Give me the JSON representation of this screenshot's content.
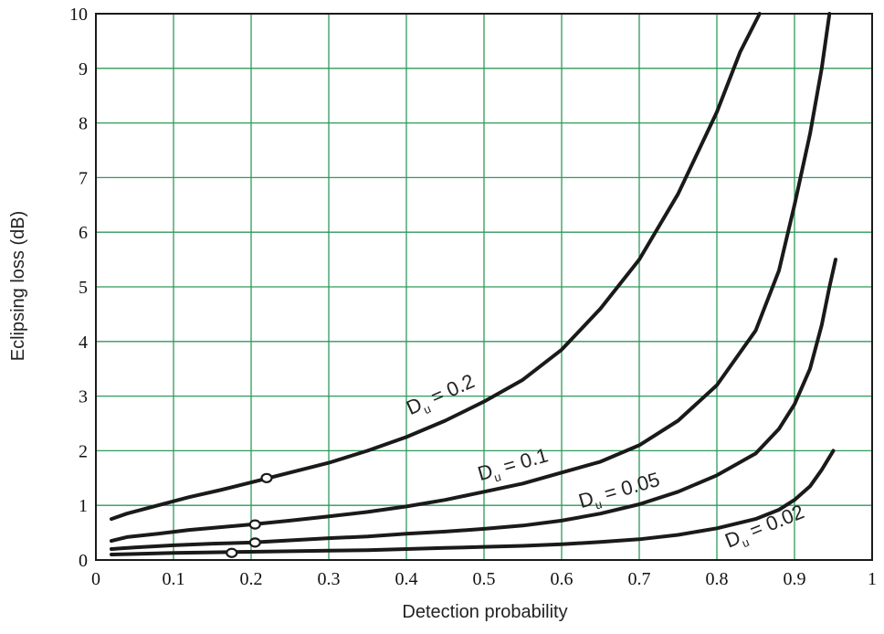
{
  "chart_data": {
    "type": "line",
    "xlabel": "Detection probability",
    "ylabel": "Eclipsing loss (dB)",
    "xlim": [
      0,
      1
    ],
    "ylim": [
      0,
      10
    ],
    "xticks": [
      "0",
      "0.1",
      "0.2",
      "0.3",
      "0.4",
      "0.5",
      "0.6",
      "0.7",
      "0.8",
      "0.9",
      "1"
    ],
    "yticks": [
      "0",
      "1",
      "2",
      "3",
      "4",
      "5",
      "6",
      "7",
      "8",
      "9",
      "10"
    ],
    "grid": true,
    "grid_color": "#2e9a5a",
    "line_color": "#1a1a1a",
    "series": [
      {
        "name": "D_u = 0.2",
        "label_main": "D",
        "label_sub": "u",
        "label_rest": " = 0.2",
        "marker": [
          0.22,
          1.5
        ],
        "points": [
          [
            0.02,
            0.75
          ],
          [
            0.04,
            0.85
          ],
          [
            0.08,
            1.0
          ],
          [
            0.12,
            1.15
          ],
          [
            0.16,
            1.28
          ],
          [
            0.2,
            1.42
          ],
          [
            0.25,
            1.6
          ],
          [
            0.3,
            1.78
          ],
          [
            0.35,
            2.0
          ],
          [
            0.4,
            2.25
          ],
          [
            0.45,
            2.55
          ],
          [
            0.5,
            2.9
          ],
          [
            0.55,
            3.3
          ],
          [
            0.6,
            3.85
          ],
          [
            0.65,
            4.6
          ],
          [
            0.7,
            5.5
          ],
          [
            0.75,
            6.7
          ],
          [
            0.8,
            8.2
          ],
          [
            0.83,
            9.3
          ],
          [
            0.855,
            10.0
          ]
        ]
      },
      {
        "name": "D_u = 0.1",
        "label_main": "D",
        "label_sub": "u",
        "label_rest": " = 0.1",
        "marker": [
          0.205,
          0.65
        ],
        "points": [
          [
            0.02,
            0.35
          ],
          [
            0.04,
            0.42
          ],
          [
            0.08,
            0.48
          ],
          [
            0.12,
            0.55
          ],
          [
            0.16,
            0.6
          ],
          [
            0.2,
            0.65
          ],
          [
            0.25,
            0.72
          ],
          [
            0.3,
            0.8
          ],
          [
            0.35,
            0.88
          ],
          [
            0.4,
            0.98
          ],
          [
            0.45,
            1.1
          ],
          [
            0.5,
            1.25
          ],
          [
            0.55,
            1.4
          ],
          [
            0.6,
            1.6
          ],
          [
            0.65,
            1.8
          ],
          [
            0.7,
            2.1
          ],
          [
            0.75,
            2.55
          ],
          [
            0.8,
            3.2
          ],
          [
            0.85,
            4.2
          ],
          [
            0.88,
            5.3
          ],
          [
            0.9,
            6.5
          ],
          [
            0.92,
            7.8
          ],
          [
            0.935,
            9.0
          ],
          [
            0.945,
            10.0
          ]
        ]
      },
      {
        "name": "D_u = 0.05",
        "label_main": "D",
        "label_sub": "u",
        "label_rest": " = 0.05",
        "marker": [
          0.205,
          0.32
        ],
        "points": [
          [
            0.02,
            0.2
          ],
          [
            0.05,
            0.23
          ],
          [
            0.1,
            0.27
          ],
          [
            0.15,
            0.3
          ],
          [
            0.2,
            0.32
          ],
          [
            0.25,
            0.36
          ],
          [
            0.3,
            0.4
          ],
          [
            0.35,
            0.43
          ],
          [
            0.4,
            0.48
          ],
          [
            0.45,
            0.52
          ],
          [
            0.5,
            0.57
          ],
          [
            0.55,
            0.63
          ],
          [
            0.6,
            0.72
          ],
          [
            0.65,
            0.85
          ],
          [
            0.7,
            1.02
          ],
          [
            0.75,
            1.25
          ],
          [
            0.8,
            1.55
          ],
          [
            0.85,
            1.95
          ],
          [
            0.88,
            2.4
          ],
          [
            0.9,
            2.85
          ],
          [
            0.92,
            3.5
          ],
          [
            0.935,
            4.3
          ],
          [
            0.945,
            5.0
          ],
          [
            0.953,
            5.5
          ]
        ]
      },
      {
        "name": "D_u = 0.02",
        "label_main": "D",
        "label_sub": "u",
        "label_rest": " = 0.02",
        "marker": [
          0.175,
          0.13
        ],
        "points": [
          [
            0.02,
            0.1
          ],
          [
            0.05,
            0.11
          ],
          [
            0.1,
            0.13
          ],
          [
            0.15,
            0.14
          ],
          [
            0.2,
            0.15
          ],
          [
            0.25,
            0.16
          ],
          [
            0.3,
            0.17
          ],
          [
            0.35,
            0.18
          ],
          [
            0.4,
            0.2
          ],
          [
            0.45,
            0.22
          ],
          [
            0.5,
            0.24
          ],
          [
            0.55,
            0.26
          ],
          [
            0.6,
            0.29
          ],
          [
            0.65,
            0.33
          ],
          [
            0.7,
            0.38
          ],
          [
            0.75,
            0.46
          ],
          [
            0.8,
            0.58
          ],
          [
            0.85,
            0.75
          ],
          [
            0.88,
            0.92
          ],
          [
            0.9,
            1.1
          ],
          [
            0.92,
            1.35
          ],
          [
            0.935,
            1.65
          ],
          [
            0.95,
            2.0
          ]
        ]
      }
    ]
  }
}
